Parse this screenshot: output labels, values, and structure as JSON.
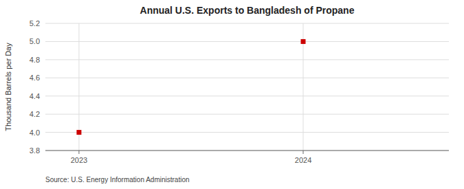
{
  "chart_data": {
    "type": "scatter",
    "title": "Annual U.S. Exports to Bangladesh of Propane",
    "y_label": "Thousand Barrels per Day",
    "source": "Source: U.S. Energy Information Administration",
    "x": [
      2023,
      2024
    ],
    "values": [
      4.0,
      5.0
    ],
    "color": "#cc0000",
    "marker": "square",
    "xlim": [
      2022.85,
      2024.65
    ],
    "xticks": [
      2023,
      2024
    ],
    "ylim": [
      3.8,
      5.2
    ],
    "yticks": [
      3.8,
      {
        "value": 4.0,
        "label": "4.0"
      },
      4.2,
      4.4,
      4.6,
      4.8,
      {
        "value": 5.0,
        "label": "5.0"
      },
      5.2
    ],
    "grid": true
  }
}
